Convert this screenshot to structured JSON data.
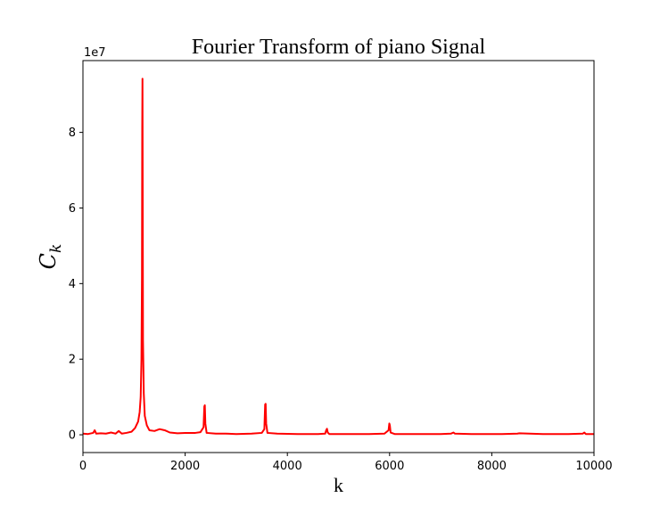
{
  "chart_data": {
    "type": "line",
    "title": "Fourier Transform of piano Signal",
    "xlabel": "k",
    "ylabel": {
      "main": "C",
      "sub": "k"
    },
    "y_offset_text": "1e7",
    "xlim": [
      0,
      10000
    ],
    "ylim": [
      -0.47,
      9.9
    ],
    "y_multiplier": 10000000,
    "x_ticks": [
      0,
      2000,
      4000,
      6000,
      8000,
      10000
    ],
    "x_tick_labels": [
      "0",
      "2000",
      "4000",
      "6000",
      "8000",
      "10000"
    ],
    "y_ticks": [
      0,
      2,
      4,
      6,
      8
    ],
    "y_tick_labels": [
      "0",
      "2",
      "4",
      "6",
      "8"
    ],
    "grid": false,
    "series": [
      {
        "color": "#ff0000",
        "points": [
          [
            0,
            0.03
          ],
          [
            100,
            0.02
          ],
          [
            200,
            0.05
          ],
          [
            230,
            0.12
          ],
          [
            260,
            0.03
          ],
          [
            350,
            0.04
          ],
          [
            450,
            0.03
          ],
          [
            550,
            0.06
          ],
          [
            640,
            0.03
          ],
          [
            700,
            0.1
          ],
          [
            760,
            0.03
          ],
          [
            850,
            0.05
          ],
          [
            950,
            0.08
          ],
          [
            1020,
            0.18
          ],
          [
            1080,
            0.35
          ],
          [
            1110,
            0.6
          ],
          [
            1130,
            1.0
          ],
          [
            1145,
            2.0
          ],
          [
            1155,
            4.2
          ],
          [
            1160,
            8.1
          ],
          [
            1165,
            9.42
          ],
          [
            1170,
            6.0
          ],
          [
            1175,
            2.5
          ],
          [
            1190,
            1.1
          ],
          [
            1210,
            0.5
          ],
          [
            1250,
            0.25
          ],
          [
            1300,
            0.12
          ],
          [
            1400,
            0.1
          ],
          [
            1500,
            0.15
          ],
          [
            1600,
            0.12
          ],
          [
            1700,
            0.06
          ],
          [
            1850,
            0.04
          ],
          [
            2000,
            0.05
          ],
          [
            2200,
            0.05
          ],
          [
            2300,
            0.07
          ],
          [
            2360,
            0.2
          ],
          [
            2375,
            0.75
          ],
          [
            2385,
            0.78
          ],
          [
            2395,
            0.3
          ],
          [
            2420,
            0.05
          ],
          [
            2600,
            0.03
          ],
          [
            2800,
            0.03
          ],
          [
            3000,
            0.02
          ],
          [
            3300,
            0.03
          ],
          [
            3500,
            0.05
          ],
          [
            3550,
            0.15
          ],
          [
            3565,
            0.8
          ],
          [
            3575,
            0.82
          ],
          [
            3585,
            0.3
          ],
          [
            3610,
            0.05
          ],
          [
            3800,
            0.03
          ],
          [
            4200,
            0.02
          ],
          [
            4600,
            0.02
          ],
          [
            4740,
            0.03
          ],
          [
            4760,
            0.12
          ],
          [
            4775,
            0.16
          ],
          [
            4790,
            0.06
          ],
          [
            4820,
            0.02
          ],
          [
            5200,
            0.02
          ],
          [
            5600,
            0.02
          ],
          [
            5900,
            0.03
          ],
          [
            5980,
            0.12
          ],
          [
            5995,
            0.3
          ],
          [
            6005,
            0.25
          ],
          [
            6020,
            0.06
          ],
          [
            6100,
            0.02
          ],
          [
            6600,
            0.02
          ],
          [
            7000,
            0.02
          ],
          [
            7200,
            0.03
          ],
          [
            7250,
            0.06
          ],
          [
            7280,
            0.03
          ],
          [
            7600,
            0.02
          ],
          [
            8200,
            0.02
          ],
          [
            8500,
            0.03
          ],
          [
            8540,
            0.04
          ],
          [
            9000,
            0.02
          ],
          [
            9500,
            0.02
          ],
          [
            9780,
            0.03
          ],
          [
            9810,
            0.06
          ],
          [
            9840,
            0.02
          ],
          [
            10000,
            0.02
          ]
        ]
      }
    ]
  }
}
